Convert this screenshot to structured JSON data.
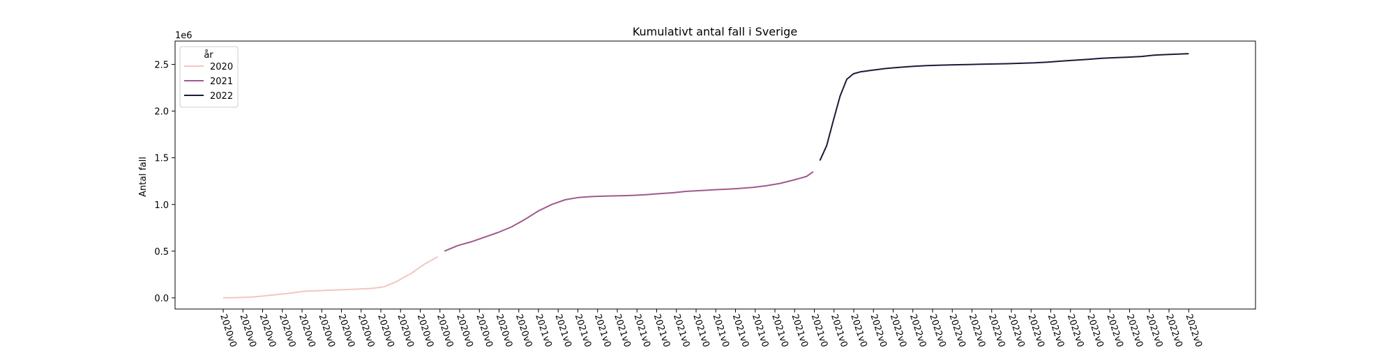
{
  "chart_data": {
    "type": "line",
    "title": "Kumulativt antal fall i Sverige",
    "ylabel": "Antal fall",
    "xlabel": "",
    "y_offset_label": "1e6",
    "ylim": [
      -0.12,
      2.75
    ],
    "yticks": [
      0.0,
      0.5,
      1.0,
      1.5,
      2.0,
      2.5
    ],
    "ytick_labels": [
      "0.0",
      "0.5",
      "1.0",
      "1.5",
      "2.0",
      "2.5"
    ],
    "xtick_labels": [
      "2020v0",
      "2020v0",
      "2020v0",
      "2020v0",
      "2020v0",
      "2020v0",
      "2020v0",
      "2020v0",
      "2020v0",
      "2020v0",
      "2020v0",
      "2020v0",
      "2020v0",
      "2020v0",
      "2020v0",
      "2020v0",
      "2021v0",
      "2021v0",
      "2021v0",
      "2021v0",
      "2021v0",
      "2021v0",
      "2021v0",
      "2021v0",
      "2021v0",
      "2021v0",
      "2021v0",
      "2021v0",
      "2021v0",
      "2021v0",
      "2021v0",
      "2021v0",
      "2021v0",
      "2022v0",
      "2022v0",
      "2022v0",
      "2022v0",
      "2022v0",
      "2022v0",
      "2022v0",
      "2022v0",
      "2022v0",
      "2022v0",
      "2022v0",
      "2022v0",
      "2022v0",
      "2022v0",
      "2022v0",
      "2022v0",
      "2022v0"
    ],
    "legend": {
      "title": "år",
      "placement": "upper-left"
    },
    "grid": false,
    "series": [
      {
        "name": "2020",
        "color": "#f1c7c1",
        "x": [
          0,
          2,
          4,
          6,
          8,
          10,
          12,
          14,
          16,
          18,
          20,
          22,
          24,
          26,
          28,
          30,
          32
        ],
        "y": [
          0.0,
          0.002,
          0.007,
          0.02,
          0.035,
          0.05,
          0.07,
          0.076,
          0.082,
          0.087,
          0.093,
          0.1,
          0.118,
          0.18,
          0.26,
          0.36,
          0.44
        ]
      },
      {
        "name": "2021",
        "color": "#a0588c",
        "x": [
          33,
          35,
          37,
          39,
          41,
          43,
          45,
          47,
          49,
          51,
          53,
          55,
          57,
          59,
          61,
          63,
          65,
          67,
          69,
          71,
          73,
          75,
          77,
          79,
          81,
          83,
          85,
          87,
          88
        ],
        "y": [
          0.5,
          0.56,
          0.6,
          0.65,
          0.7,
          0.76,
          0.84,
          0.93,
          1.0,
          1.05,
          1.075,
          1.085,
          1.09,
          1.093,
          1.097,
          1.105,
          1.115,
          1.125,
          1.14,
          1.148,
          1.156,
          1.163,
          1.172,
          1.183,
          1.2,
          1.225,
          1.26,
          1.3,
          1.35
        ]
      },
      {
        "name": "2022",
        "color": "#1e1938",
        "x": [
          89,
          90,
          91,
          92,
          93,
          94,
          95,
          97,
          99,
          101,
          103,
          105,
          107,
          109,
          111,
          113,
          115,
          117,
          119,
          121,
          123,
          125,
          127,
          129,
          131,
          133,
          135,
          137,
          139,
          141,
          143,
          144
        ],
        "y": [
          1.47,
          1.63,
          1.9,
          2.16,
          2.34,
          2.4,
          2.42,
          2.44,
          2.458,
          2.47,
          2.48,
          2.487,
          2.492,
          2.496,
          2.499,
          2.502,
          2.505,
          2.508,
          2.512,
          2.517,
          2.525,
          2.535,
          2.545,
          2.555,
          2.565,
          2.572,
          2.578,
          2.585,
          2.6,
          2.607,
          2.612,
          2.615
        ]
      }
    ]
  }
}
